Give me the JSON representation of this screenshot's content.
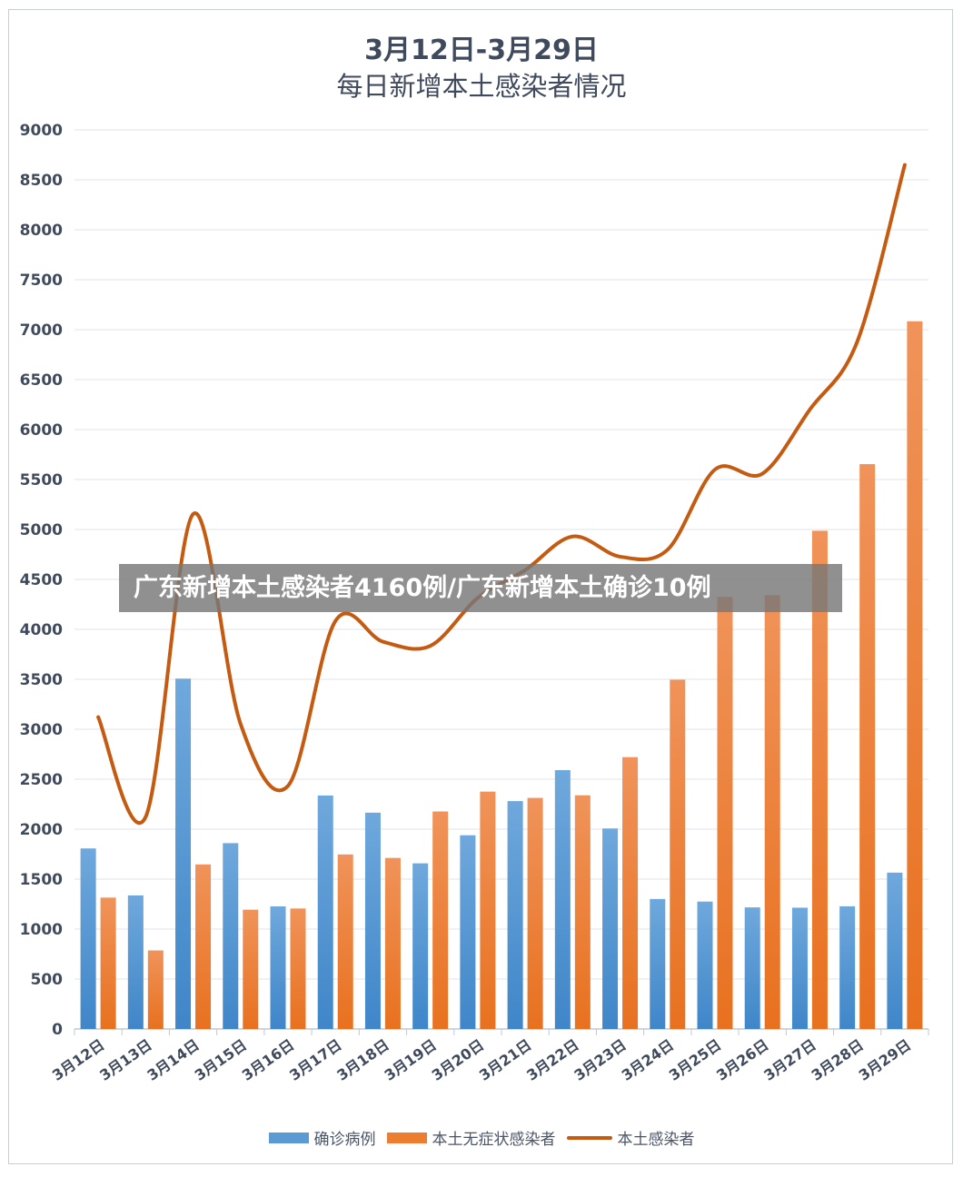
{
  "title_line1": "3月12日-3月29日",
  "title_line2": "每日新增本土感染者情况",
  "overlay_text": "广东新增本土感染者4160例/广东新增本土确诊10例",
  "colors": {
    "confirmed": "#5b9bd5",
    "asymptomatic": "#ed7d31",
    "total": "#c55a11",
    "grid": "#dfe3e8",
    "axis_text": "#3f4a5c"
  },
  "chart_data": {
    "type": "bar",
    "title": "3月12日-3月29日 每日新增本土感染者情况",
    "categories": [
      "3月12日",
      "3月13日",
      "3月14日",
      "3月15日",
      "3月16日",
      "3月17日",
      "3月18日",
      "3月19日",
      "3月20日",
      "3月21日",
      "3月22日",
      "3月23日",
      "3月24日",
      "3月25日",
      "3月26日",
      "3月27日",
      "3月28日",
      "3月29日"
    ],
    "ylim": [
      0,
      9000
    ],
    "yticks": [
      0,
      500,
      1000,
      1500,
      2000,
      2500,
      3000,
      3500,
      4000,
      4500,
      5000,
      5500,
      6000,
      6500,
      7000,
      7500,
      8000,
      8500,
      9000
    ],
    "grid": true,
    "legend_position": "bottom",
    "series": [
      {
        "name": "确诊病例",
        "kind": "bar",
        "color": "#5b9bd5",
        "values": [
          1807,
          1337,
          3507,
          1860,
          1227,
          2337,
          2165,
          1658,
          1939,
          2281,
          2591,
          2007,
          1301,
          1275,
          1217,
          1214,
          1228,
          1565
        ]
      },
      {
        "name": "本土无症状感染者",
        "kind": "bar",
        "color": "#ed7d31",
        "values": [
          1315,
          786,
          1647,
          1194,
          1206,
          1747,
          1712,
          2177,
          2376,
          2313,
          2339,
          2721,
          3496,
          4325,
          4342,
          4987,
          5654,
          7084
        ]
      },
      {
        "name": "本土感染者",
        "kind": "line",
        "color": "#c55a11",
        "values": [
          3122,
          2123,
          5154,
          3054,
          2433,
          4084,
          3877,
          3835,
          4315,
          4594,
          4930,
          4728,
          4797,
          5600,
          5559,
          6201,
          6882,
          8649
        ]
      }
    ]
  }
}
